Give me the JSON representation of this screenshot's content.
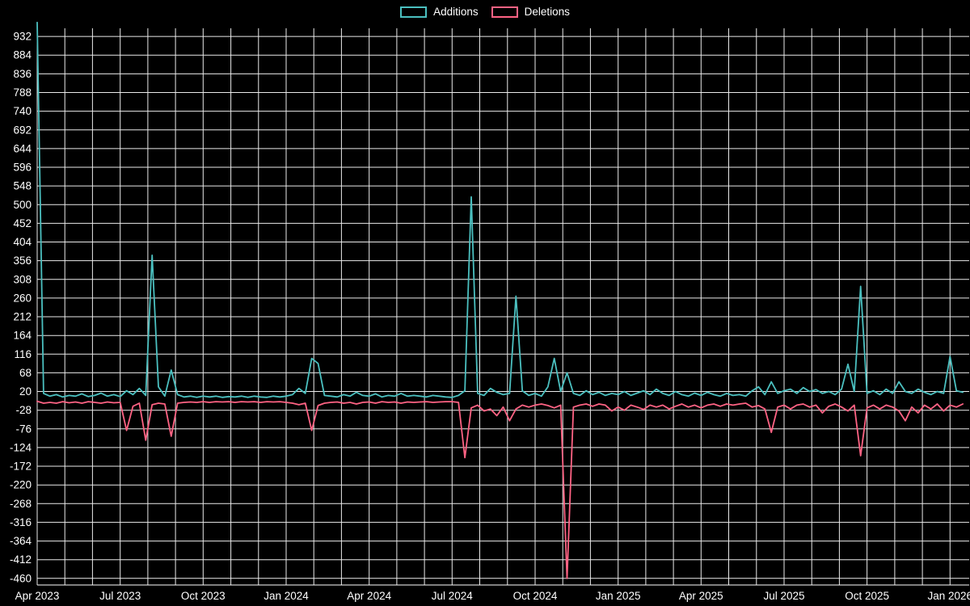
{
  "page": {
    "background": "#000000",
    "text_color": "#ffffff"
  },
  "legend": {
    "items": [
      {
        "label": "Additions",
        "color": "#4bc0c0"
      },
      {
        "label": "Deletions",
        "color": "#ff6384"
      }
    ]
  },
  "chart_data": {
    "type": "line",
    "title": "",
    "xlabel": "",
    "ylabel": "",
    "grid": true,
    "legend_position": "top-center",
    "grid_color": "#eaeaea",
    "axis_color": "#ffffff",
    "text_color": "#ffffff",
    "x_unit": "week",
    "x_domain": [
      0,
      146
    ],
    "y_domain": [
      -477,
      953
    ],
    "y_ticks": [
      932,
      884,
      836,
      788,
      740,
      692,
      644,
      596,
      548,
      500,
      452,
      404,
      356,
      308,
      260,
      212,
      164,
      116,
      68,
      20,
      -28,
      -76,
      -124,
      -172,
      -220,
      -268,
      -316,
      -364,
      -412,
      -460
    ],
    "x_ticks": [
      {
        "label": "Apr 2023",
        "week": 0
      },
      {
        "label": "Jul 2023",
        "week": 13
      },
      {
        "label": "Oct 2023",
        "week": 26
      },
      {
        "label": "Jan 2024",
        "week": 39
      },
      {
        "label": "Apr 2024",
        "week": 52
      },
      {
        "label": "Jul 2024",
        "week": 65
      },
      {
        "label": "Oct 2024",
        "week": 78
      },
      {
        "label": "Jan 2025",
        "week": 91
      },
      {
        "label": "Apr 2025",
        "week": 104
      },
      {
        "label": "Jul 2025",
        "week": 117
      },
      {
        "label": "Oct 2025",
        "week": 130
      },
      {
        "label": "Jan 2026",
        "week": 143
      }
    ],
    "series": [
      {
        "name": "Additions",
        "color": "#4bc0c0",
        "values": [
          968,
          15,
          8,
          12,
          6,
          10,
          8,
          14,
          7,
          10,
          16,
          8,
          12,
          7,
          22,
          12,
          28,
          10,
          370,
          32,
          8,
          75,
          12,
          6,
          8,
          5,
          8,
          6,
          8,
          5,
          7,
          6,
          8,
          5,
          8,
          6,
          5,
          8,
          6,
          8,
          12,
          28,
          15,
          105,
          92,
          10,
          8,
          6,
          12,
          8,
          18,
          10,
          8,
          14,
          6,
          10,
          8,
          15,
          8,
          10,
          8,
          6,
          10,
          8,
          6,
          5,
          10,
          22,
          520,
          15,
          10,
          28,
          18,
          12,
          15,
          265,
          22,
          10,
          15,
          8,
          32,
          105,
          20,
          68,
          15,
          10,
          22,
          12,
          18,
          10,
          15,
          12,
          20,
          10,
          16,
          22,
          12,
          26,
          15,
          10,
          20,
          12,
          8,
          16,
          10,
          18,
          12,
          8,
          15,
          10,
          12,
          8,
          22,
          32,
          12,
          45,
          15,
          22,
          26,
          15,
          30,
          20,
          25,
          15,
          20,
          12,
          26,
          90,
          20,
          290,
          15,
          22,
          12,
          26,
          15,
          45,
          20,
          15,
          26,
          18,
          12,
          20,
          15,
          110,
          22,
          18
        ]
      },
      {
        "name": "Deletions",
        "color": "#ff6384",
        "values": [
          -5,
          -10,
          -8,
          -10,
          -6,
          -9,
          -7,
          -10,
          -6,
          -8,
          -10,
          -7,
          -9,
          -8,
          -80,
          -18,
          -10,
          -105,
          -14,
          -10,
          -12,
          -95,
          -10,
          -8,
          -7,
          -8,
          -6,
          -8,
          -6,
          -7,
          -6,
          -8,
          -6,
          -7,
          -6,
          -8,
          -6,
          -7,
          -6,
          -8,
          -10,
          -14,
          -10,
          -80,
          -16,
          -10,
          -8,
          -7,
          -10,
          -8,
          -12,
          -8,
          -7,
          -10,
          -6,
          -8,
          -7,
          -10,
          -7,
          -8,
          -7,
          -6,
          -8,
          -7,
          -6,
          -6,
          -8,
          -150,
          -22,
          -15,
          -30,
          -25,
          -42,
          -20,
          -55,
          -25,
          -15,
          -20,
          -15,
          -12,
          -16,
          -22,
          -15,
          -460,
          -20,
          -15,
          -12,
          -18,
          -12,
          -15,
          -30,
          -20,
          -28,
          -15,
          -20,
          -26,
          -15,
          -20,
          -15,
          -25,
          -18,
          -12,
          -20,
          -15,
          -22,
          -15,
          -12,
          -18,
          -12,
          -15,
          -12,
          -10,
          -20,
          -16,
          -25,
          -85,
          -20,
          -15,
          -25,
          -15,
          -12,
          -20,
          -15,
          -35,
          -18,
          -12,
          -20,
          -30,
          -15,
          -145,
          -22,
          -15,
          -25,
          -15,
          -20,
          -30,
          -55,
          -20,
          -35,
          -15,
          -25,
          -12,
          -30,
          -15,
          -20,
          -12
        ]
      }
    ]
  }
}
